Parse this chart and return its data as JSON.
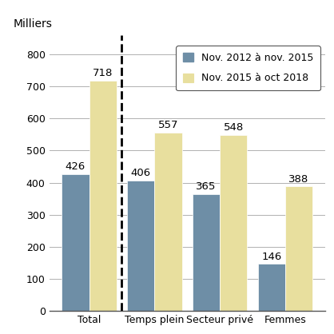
{
  "categories": [
    "Total",
    "Temps plein",
    "Secteur privé",
    "Femmes"
  ],
  "series1_label": "Nov. 2012 à nov. 2015",
  "series2_label": "Nov. 2015 à oct 2018",
  "series1_values": [
    426,
    406,
    365,
    146
  ],
  "series2_values": [
    718,
    557,
    548,
    388
  ],
  "series1_color": "#6e8ea6",
  "series2_color": "#e8df9e",
  "ylabel": "Milliers",
  "ylim": [
    0,
    860
  ],
  "yticks": [
    0,
    100,
    200,
    300,
    400,
    500,
    600,
    700,
    800
  ],
  "bar_width": 0.42,
  "value_fontsize": 9.5,
  "legend_fontsize": 9,
  "axis_label_fontsize": 10,
  "tick_label_fontsize": 9,
  "grid_color": "#b0b0b0",
  "background_color": "#ffffff",
  "bar_edge_color": "#ffffff",
  "dashed_line_color": "#000000",
  "bottom_spine_color": "#555555"
}
